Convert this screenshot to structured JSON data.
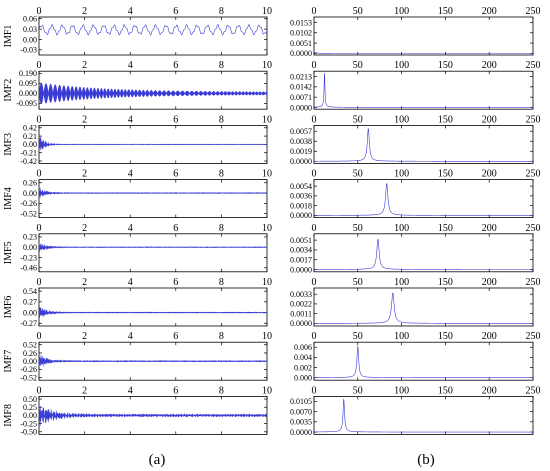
{
  "chart_data": [
    {
      "panel_label": "(a)",
      "type": "line",
      "x_ticks": [
        0,
        2,
        4,
        6,
        8,
        10
      ],
      "xlim": [
        0,
        10
      ],
      "rows": [
        {
          "name": "IMF1",
          "yticks": [
            "0.06",
            "0.03",
            "0.00",
            "-0.03"
          ],
          "ylim": [
            -0.045,
            0.065
          ],
          "signal": {
            "kind": "steady",
            "amp": 0.012,
            "freq": 2.2,
            "offset": 0.028,
            "hf": 0
          }
        },
        {
          "name": "IMF2",
          "yticks": [
            "0.190",
            "0.095",
            "0.000",
            "-0.095"
          ],
          "ylim": [
            -0.15,
            0.21
          ],
          "signal": {
            "kind": "dense",
            "amp": 0.09,
            "tail": 0.012,
            "decay": 0.35,
            "freq": 11
          }
        },
        {
          "name": "IMF3",
          "yticks": [
            "0.42",
            "0.21",
            "0.00",
            "-0.21",
            "-0.42"
          ],
          "ylim": [
            -0.48,
            0.48
          ],
          "signal": {
            "kind": "burst",
            "amp": 0.25,
            "tail": 0.008,
            "decay": 4.5,
            "freq": 14
          }
        },
        {
          "name": "IMF4",
          "yticks": [
            "0.26",
            "0.00",
            "-0.26",
            "-0.52"
          ],
          "ylim": [
            -0.62,
            0.34
          ],
          "signal": {
            "kind": "burst",
            "amp": 0.13,
            "tail": 0.012,
            "decay": 3.5,
            "freq": 16
          }
        },
        {
          "name": "IMF5",
          "yticks": [
            "0.23",
            "0.00",
            "-0.23",
            "-0.46"
          ],
          "ylim": [
            -0.55,
            0.3
          ],
          "signal": {
            "kind": "burst",
            "amp": 0.11,
            "tail": 0.01,
            "decay": 3.5,
            "freq": 15
          }
        },
        {
          "name": "IMF6",
          "yticks": [
            "0.54",
            "0.27",
            "0.00",
            "-0.27"
          ],
          "ylim": [
            -0.34,
            0.62
          ],
          "signal": {
            "kind": "burst",
            "amp": 0.16,
            "tail": 0.012,
            "decay": 3.2,
            "freq": 18
          }
        },
        {
          "name": "IMF7",
          "yticks": [
            "0.52",
            "0.26",
            "0.00",
            "-0.26",
            "-0.52"
          ],
          "ylim": [
            -0.6,
            0.6
          ],
          "signal": {
            "kind": "burst",
            "amp": 0.2,
            "tail": 0.02,
            "decay": 2.8,
            "freq": 16
          }
        },
        {
          "name": "IMF8",
          "yticks": [
            "0.50",
            "0.25",
            "0.00",
            "-0.25",
            "-0.50"
          ],
          "ylim": [
            -0.58,
            0.58
          ],
          "signal": {
            "kind": "burst",
            "amp": 0.28,
            "tail": 0.04,
            "decay": 1.6,
            "freq": 14
          }
        }
      ]
    },
    {
      "panel_label": "(b)",
      "type": "line",
      "x_ticks": [
        0,
        50,
        100,
        150,
        200,
        250
      ],
      "xlim": [
        0,
        250
      ],
      "rows": [
        {
          "yticks": [
            "0.0153",
            "0.0102",
            "0.0051",
            "0.0000"
          ],
          "ylim": [
            -0.0008,
            0.018
          ],
          "peak": {
            "x": 2,
            "height": 0.0003,
            "width": 3
          }
        },
        {
          "yticks": [
            "0.0213",
            "0.0142",
            "0.0071",
            "0.0000"
          ],
          "ylim": [
            -0.0012,
            0.025
          ],
          "peak": {
            "x": 12,
            "height": 0.0235,
            "width": 0.6
          }
        },
        {
          "yticks": [
            "0.0057",
            "0.0038",
            "0.0019",
            "0.0000"
          ],
          "ylim": [
            -0.0004,
            0.0068
          ],
          "peak": {
            "x": 62,
            "height": 0.0061,
            "width": 1.4
          }
        },
        {
          "yticks": [
            "0.0054",
            "0.0036",
            "0.0018",
            "0.0000"
          ],
          "ylim": [
            -0.0004,
            0.0066
          ],
          "peak": {
            "x": 83,
            "height": 0.0058,
            "width": 1.6
          }
        },
        {
          "yticks": [
            "0.0051",
            "0.0034",
            "0.0017",
            "0.0000"
          ],
          "ylim": [
            -0.0004,
            0.0062
          ],
          "peak": {
            "x": 73,
            "height": 0.0052,
            "width": 1.6
          }
        },
        {
          "yticks": [
            "0.0033",
            "0.0022",
            "0.0011",
            "0.0000"
          ],
          "ylim": [
            -0.0003,
            0.004
          ],
          "peak": {
            "x": 90,
            "height": 0.0034,
            "width": 1.8
          }
        },
        {
          "yticks": [
            "0.006",
            "0.004",
            "0.002",
            "0.000"
          ],
          "ylim": [
            -0.0005,
            0.007
          ],
          "peak": {
            "x": 50,
            "height": 0.0061,
            "width": 1.2
          }
        },
        {
          "yticks": [
            "0.0105",
            "0.0070",
            "0.0035",
            "0.0000"
          ],
          "ylim": [
            -0.0008,
            0.0122
          ],
          "peak": {
            "x": 34,
            "height": 0.0112,
            "width": 1.0
          }
        }
      ]
    }
  ],
  "colors": {
    "line": "#3b3bd6",
    "axis": "#000000"
  }
}
